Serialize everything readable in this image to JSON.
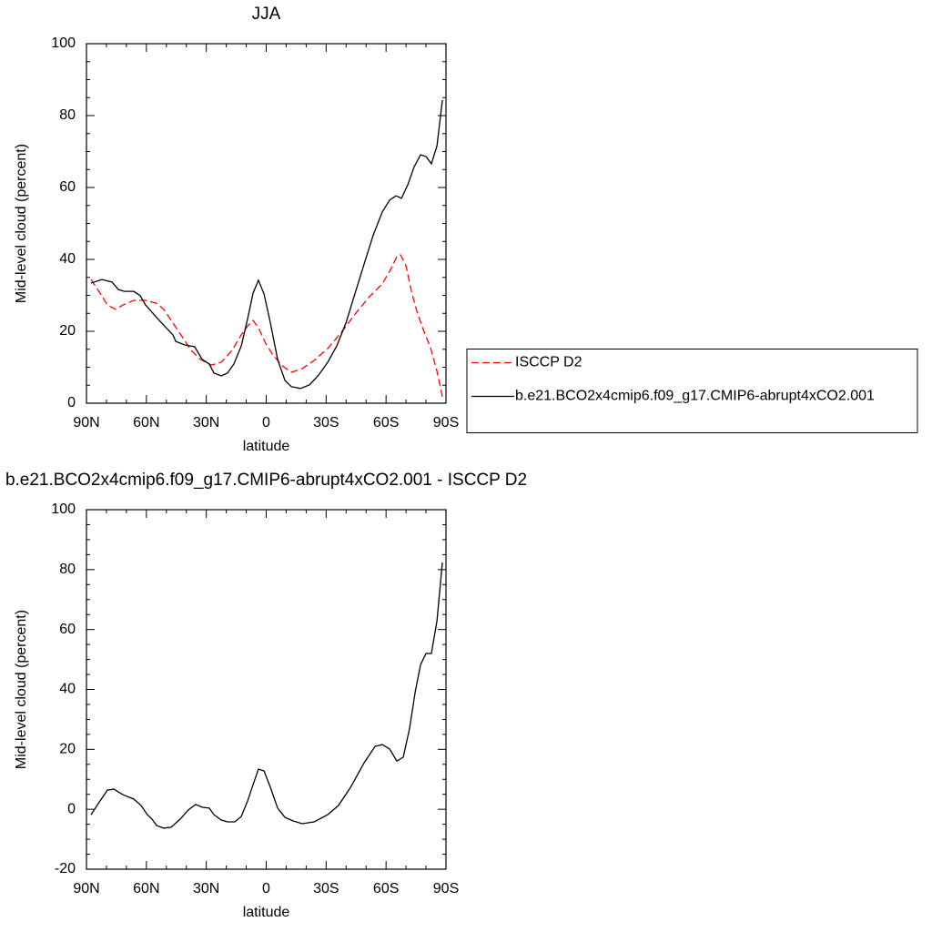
{
  "chart_data": [
    {
      "type": "line",
      "title": "JJA",
      "xlabel": "latitude",
      "ylabel": "Mid-level cloud (percent)",
      "xlim": [
        90,
        -90
      ],
      "ylim": [
        0,
        100
      ],
      "xticks": [
        {
          "value": 90,
          "label": "90N"
        },
        {
          "value": 60,
          "label": "60N"
        },
        {
          "value": 30,
          "label": "30N"
        },
        0,
        {
          "value": -30,
          "label": "30S"
        },
        {
          "value": -60,
          "label": "60S"
        },
        {
          "value": -90,
          "label": "90S"
        }
      ],
      "yticks": [
        0,
        20,
        40,
        60,
        80,
        100
      ],
      "xminorticks": [
        80,
        70,
        50,
        40,
        20,
        10,
        -10,
        -20,
        -40,
        -50,
        -70,
        -80
      ],
      "yminorticks": [
        5,
        10,
        15,
        25,
        30,
        35,
        45,
        50,
        55,
        65,
        70,
        75,
        85,
        90,
        95
      ],
      "legend": "right",
      "series": [
        {
          "name": "ISCCP D2",
          "color": "#ff0000",
          "linestyle": "dashed",
          "x": [
            87.7,
            83.2,
            79.5,
            75.4,
            71.8,
            66.3,
            60.4,
            54.9,
            51.3,
            46.7,
            42.1,
            37.6,
            33,
            27.6,
            22.5,
            17.1,
            12.5,
            9.3,
            6.6,
            3.9,
            0.2,
            -3.4,
            -8,
            -12.6,
            -18,
            -24,
            -30.8,
            -37.6,
            -44.5,
            -51.3,
            -58.1,
            -61.8,
            -65.4,
            -67.2,
            -70,
            -72.7,
            -75.4,
            -78.6,
            -82.3,
            -85.5,
            -88.2
          ],
          "values": [
            34.4,
            30.6,
            27.3,
            26.1,
            27.3,
            28.6,
            28.6,
            27.8,
            26.1,
            22.3,
            18.5,
            14.7,
            12.2,
            10.6,
            11.4,
            14.7,
            19,
            21.5,
            23,
            21,
            16.5,
            13.4,
            10.4,
            8.6,
            9.6,
            11.9,
            15.2,
            19.7,
            24.8,
            29.4,
            33.2,
            36.7,
            40.8,
            41.3,
            38.2,
            31.1,
            25.6,
            20.5,
            15.4,
            8.9,
            1.8
          ]
        },
        {
          "name": "b.e21.BCO2x4cmip6.f09_g17.CMIP6-abrupt4xCO2.001",
          "color": "#000000",
          "linestyle": "solid",
          "x": [
            87.7,
            82.3,
            77.2,
            74,
            71,
            66.3,
            63.1,
            60.4,
            53.5,
            46.7,
            45.3,
            40.8,
            35.8,
            32.1,
            28.5,
            26.2,
            22.5,
            19.4,
            16.2,
            12.5,
            9.3,
            6.6,
            3.9,
            1.1,
            -2.1,
            -5.7,
            -9.4,
            -12.6,
            -17.1,
            -21.7,
            -26.2,
            -30.8,
            -35.3,
            -39.9,
            -44.5,
            -49,
            -53.6,
            -58.1,
            -61.8,
            -65,
            -67.7,
            -70.9,
            -74.1,
            -77.3,
            -80,
            -82.7,
            -85.5,
            -88.2
          ],
          "values": [
            33.4,
            34.4,
            33.7,
            31.6,
            31.1,
            31.1,
            29.9,
            27.3,
            23,
            19,
            17.2,
            16.2,
            15.7,
            12.2,
            10.9,
            8.4,
            7.6,
            8.4,
            10.9,
            15.9,
            23.5,
            30.6,
            34.2,
            30.4,
            22.3,
            12.2,
            6.3,
            4.6,
            4.1,
            5.1,
            7.8,
            11.4,
            15.9,
            22.3,
            30.6,
            38.7,
            46.8,
            53.2,
            56.5,
            57.7,
            57,
            60.8,
            65.8,
            69.1,
            68.6,
            66.6,
            71.6,
            84.3
          ]
        }
      ]
    },
    {
      "type": "line",
      "title": "b.e21.BCO2x4cmip6.f09_g17.CMIP6-abrupt4xCO2.001 - ISCCP D2",
      "xlabel": "latitude",
      "ylabel": "Mid-level cloud (percent)",
      "xlim": [
        90,
        -90
      ],
      "ylim": [
        -20,
        100
      ],
      "xticks": [
        {
          "value": 90,
          "label": "90N"
        },
        {
          "value": 60,
          "label": "60N"
        },
        {
          "value": 30,
          "label": "30N"
        },
        0,
        {
          "value": -30,
          "label": "30S"
        },
        {
          "value": -60,
          "label": "60S"
        },
        {
          "value": -90,
          "label": "90S"
        }
      ],
      "yticks": [
        -20,
        0,
        20,
        40,
        60,
        80,
        100
      ],
      "xminorticks": [
        80,
        70,
        50,
        40,
        20,
        10,
        -10,
        -20,
        -40,
        -50,
        -70,
        -80
      ],
      "yminorticks": [
        -15,
        -10,
        -5,
        5,
        10,
        15,
        25,
        30,
        35,
        45,
        50,
        55,
        65,
        70,
        75,
        85,
        90,
        95
      ],
      "series": [
        {
          "color": "#000000",
          "linestyle": "solid",
          "x": [
            87.7,
            83.2,
            79.5,
            76.3,
            71.8,
            66.3,
            62.7,
            59.5,
            57.2,
            54.9,
            51.3,
            47.6,
            43.1,
            39,
            35.3,
            32.1,
            28.5,
            26.2,
            22.5,
            19.4,
            15.7,
            12.5,
            9.3,
            6.6,
            3.9,
            1.1,
            -2.1,
            -5.7,
            -9.4,
            -13.5,
            -18,
            -24,
            -30.8,
            -36.2,
            -42.2,
            -49,
            -54.5,
            -58.1,
            -61.8,
            -65.4,
            -68.6,
            -71.8,
            -74.6,
            -77.3,
            -80,
            -82.7,
            -85.5,
            -88.2
          ],
          "values": [
            -1.8,
            2.8,
            6.4,
            6.7,
            4.9,
            3.4,
            1.3,
            -1.8,
            -3.3,
            -5.4,
            -6.3,
            -6,
            -3.3,
            -0.2,
            1.6,
            0.7,
            0.4,
            -1.8,
            -3.6,
            -4.2,
            -4.2,
            -2.4,
            2.8,
            8.2,
            13.4,
            12.8,
            7.3,
            0.4,
            -2.7,
            -3.9,
            -4.8,
            -4.2,
            -1.8,
            1.3,
            7.3,
            15.5,
            21,
            21.6,
            20.1,
            16.1,
            17.4,
            27.1,
            39.2,
            48.3,
            52,
            52,
            62.9,
            82.4
          ]
        }
      ]
    }
  ]
}
